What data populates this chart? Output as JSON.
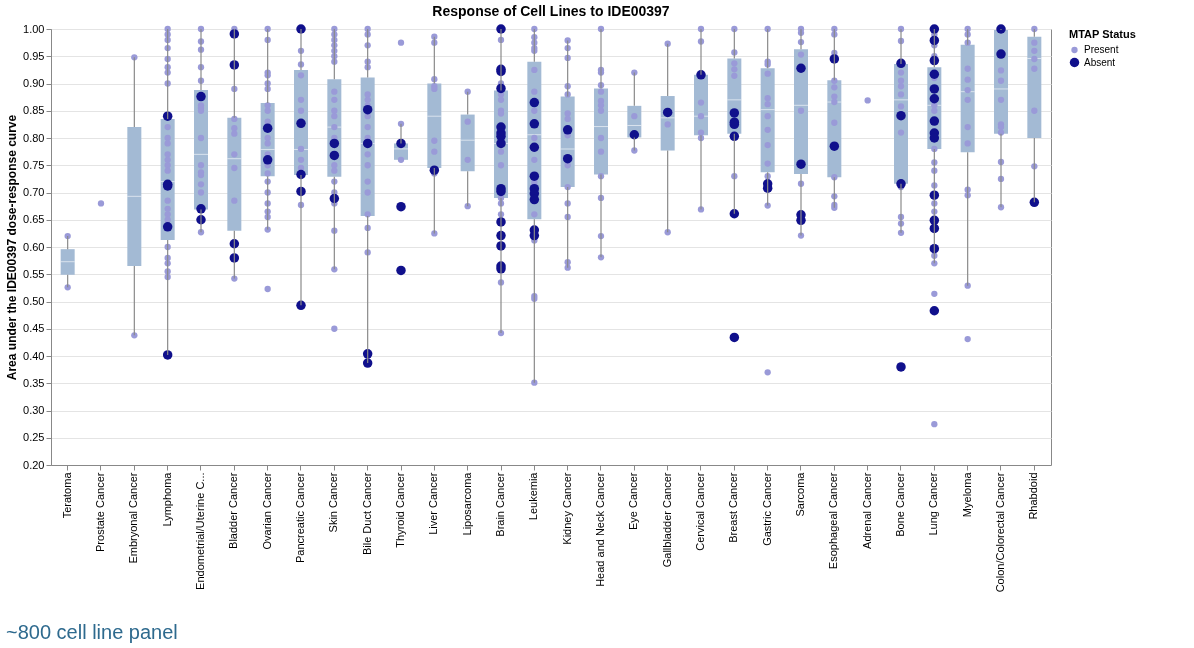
{
  "chart_data": {
    "type": "box",
    "title": "Response of Cell Lines to IDE00397",
    "ylabel": "Area under the IDE00397 dose-response curve",
    "legend_title": "MTAP Status",
    "legend": "right",
    "grid": "y",
    "marker": "circle",
    "annotations": [
      "~800 cell line panel"
    ],
    "ylim": [
      0.2,
      1.0
    ],
    "yticks": [
      {
        "value": 0.2,
        "label": "0.20"
      },
      {
        "value": 0.25,
        "label": "0.25"
      },
      {
        "value": 0.3,
        "label": "0.30"
      },
      {
        "value": 0.35,
        "label": "0.35"
      },
      {
        "value": 0.4,
        "label": "0.40"
      },
      {
        "value": 0.45,
        "label": "0.45"
      },
      {
        "value": 0.5,
        "label": "0.50"
      },
      {
        "value": 0.55,
        "label": "0.55"
      },
      {
        "value": 0.6,
        "label": "0.60"
      },
      {
        "value": 0.65,
        "label": "0.65"
      },
      {
        "value": 0.7,
        "label": "0.70"
      },
      {
        "value": 0.75,
        "label": "0.75"
      },
      {
        "value": 0.8,
        "label": "0.80"
      },
      {
        "value": 0.85,
        "label": "0.85"
      },
      {
        "value": 0.9,
        "label": "0.90"
      },
      {
        "value": 0.95,
        "label": "0.95"
      },
      {
        "value": 1.0,
        "label": "1.00"
      }
    ],
    "categories": [
      "Teratoma",
      "Prostate Cancer",
      "Embryonal Cancer",
      "Lymphoma",
      "Endometrial/Uterine C...",
      "Bladder Cancer",
      "Ovarian Cancer",
      "Pancreatic Cancer",
      "Skin Cancer",
      "Bile Duct Cancer",
      "Thyroid Cancer",
      "Liver Cancer",
      "Liposarcoma",
      "Brain Cancer",
      "Leukemia",
      "Kidney Cancer",
      "Head and Neck Cancer",
      "Eye Cancer",
      "Gallbladder Cancer",
      "Cervical Cancer",
      "Breast Cancer",
      "Gastric Cancer",
      "Sarcoma",
      "Esophageal Cancer",
      "Adrenal Cancer",
      "Bone Cancer",
      "Lung Cancer",
      "Myeloma",
      "Colon/Colorectal Cancer",
      "Rhabdoid"
    ],
    "series": [
      {
        "type": "box",
        "color": "#a3bad4",
        "boxes": [
          {
            "low": 0.526,
            "q1": 0.549,
            "median": 0.573,
            "q3": 0.596,
            "high": 0.62
          },
          null,
          {
            "low": 0.438,
            "q1": 0.565,
            "median": 0.693,
            "q3": 0.82,
            "high": 0.948
          },
          {
            "low": 0.402,
            "q1": 0.613,
            "median": 0.72,
            "q3": 0.835,
            "high": 1.0
          },
          {
            "low": 0.627,
            "q1": 0.669,
            "median": 0.77,
            "q3": 0.888,
            "high": 1.0
          },
          {
            "low": 0.542,
            "q1": 0.63,
            "median": 0.762,
            "q3": 0.837,
            "high": 1.0
          },
          {
            "low": 0.632,
            "q1": 0.73,
            "median": 0.779,
            "q3": 0.864,
            "high": 1.0
          },
          {
            "low": 0.493,
            "q1": 0.732,
            "median": 0.779,
            "q3": 0.925,
            "high": 1.0
          },
          {
            "low": 0.559,
            "q1": 0.729,
            "median": 0.82,
            "q3": 0.908,
            "high": 1.0
          },
          {
            "low": 0.387,
            "q1": 0.657,
            "median": 0.79,
            "q3": 0.911,
            "high": 1.0
          },
          {
            "low": 0.76,
            "q1": 0.76,
            "median": 0.78,
            "q3": 0.79,
            "high": 0.826
          },
          {
            "low": 0.625,
            "q1": 0.745,
            "median": 0.84,
            "q3": 0.9,
            "high": 0.986
          },
          {
            "low": 0.675,
            "q1": 0.739,
            "median": 0.796,
            "q3": 0.843,
            "high": 0.885
          },
          {
            "low": 0.442,
            "q1": 0.69,
            "median": 0.79,
            "q3": 0.887,
            "high": 1.0
          },
          {
            "low": 0.351,
            "q1": 0.651,
            "median": 0.806,
            "q3": 0.94,
            "high": 1.0
          },
          {
            "low": 0.562,
            "q1": 0.71,
            "median": 0.78,
            "q3": 0.876,
            "high": 0.979
          },
          {
            "low": 0.581,
            "q1": 0.733,
            "median": 0.821,
            "q3": 0.891,
            "high": 1.0
          },
          {
            "low": 0.777,
            "q1": 0.801,
            "median": 0.823,
            "q3": 0.859,
            "high": 0.92
          },
          {
            "low": 0.627,
            "q1": 0.777,
            "median": 0.837,
            "q3": 0.877,
            "high": 0.973
          },
          {
            "low": 0.669,
            "q1": 0.805,
            "median": 0.84,
            "q3": 0.916,
            "high": 1.0
          },
          {
            "low": 0.661,
            "q1": 0.808,
            "median": 0.87,
            "q3": 0.946,
            "high": 1.0
          },
          {
            "low": 0.676,
            "q1": 0.737,
            "median": 0.852,
            "q3": 0.928,
            "high": 1.0
          },
          {
            "low": 0.621,
            "q1": 0.734,
            "median": 0.86,
            "q3": 0.963,
            "high": 1.0
          },
          {
            "low": 0.672,
            "q1": 0.728,
            "median": 0.866,
            "q3": 0.906,
            "high": 1.0
          },
          null,
          {
            "low": 0.626,
            "q1": 0.716,
            "median": 0.87,
            "q3": 0.936,
            "high": 1.0
          },
          {
            "low": 0.57,
            "q1": 0.78,
            "median": 0.86,
            "q3": 0.93,
            "high": 1.0
          },
          {
            "low": 0.529,
            "q1": 0.774,
            "median": 0.885,
            "q3": 0.971,
            "high": 1.0
          },
          {
            "low": 0.673,
            "q1": 0.808,
            "median": 0.89,
            "q3": 0.998,
            "high": 1.0
          },
          {
            "low": 0.682,
            "q1": 0.8,
            "median": 0.946,
            "q3": 0.986,
            "high": 1.0
          }
        ]
      },
      {
        "name": "Present",
        "type": "scatter",
        "color": "#9a9ad8",
        "x": [
          "Teratoma",
          "Teratoma",
          "Prostate Cancer",
          "Embryonal Cancer",
          "Embryonal Cancer",
          "Lymphoma",
          "Lymphoma",
          "Lymphoma",
          "Lymphoma",
          "Lymphoma",
          "Lymphoma",
          "Lymphoma",
          "Lymphoma",
          "Lymphoma",
          "Lymphoma",
          "Lymphoma",
          "Lymphoma",
          "Lymphoma",
          "Lymphoma",
          "Lymphoma",
          "Lymphoma",
          "Lymphoma",
          "Lymphoma",
          "Lymphoma",
          "Lymphoma",
          "Lymphoma",
          "Lymphoma",
          "Lymphoma",
          "Lymphoma",
          "Endometrial/Uterine C...",
          "Endometrial/Uterine C...",
          "Endometrial/Uterine C...",
          "Endometrial/Uterine C...",
          "Endometrial/Uterine C...",
          "Endometrial/Uterine C...",
          "Endometrial/Uterine C...",
          "Endometrial/Uterine C...",
          "Endometrial/Uterine C...",
          "Endometrial/Uterine C...",
          "Endometrial/Uterine C...",
          "Endometrial/Uterine C...",
          "Endometrial/Uterine C...",
          "Endometrial/Uterine C...",
          "Endometrial/Uterine C...",
          "Bladder Cancer",
          "Bladder Cancer",
          "Bladder Cancer",
          "Bladder Cancer",
          "Bladder Cancer",
          "Bladder Cancer",
          "Bladder Cancer",
          "Bladder Cancer",
          "Bladder Cancer",
          "Ovarian Cancer",
          "Ovarian Cancer",
          "Ovarian Cancer",
          "Ovarian Cancer",
          "Ovarian Cancer",
          "Ovarian Cancer",
          "Ovarian Cancer",
          "Ovarian Cancer",
          "Ovarian Cancer",
          "Ovarian Cancer",
          "Ovarian Cancer",
          "Ovarian Cancer",
          "Ovarian Cancer",
          "Ovarian Cancer",
          "Ovarian Cancer",
          "Ovarian Cancer",
          "Ovarian Cancer",
          "Ovarian Cancer",
          "Ovarian Cancer",
          "Ovarian Cancer",
          "Ovarian Cancer",
          "Pancreatic Cancer",
          "Pancreatic Cancer",
          "Pancreatic Cancer",
          "Pancreatic Cancer",
          "Pancreatic Cancer",
          "Pancreatic Cancer",
          "Pancreatic Cancer",
          "Pancreatic Cancer",
          "Pancreatic Cancer",
          "Skin Cancer",
          "Skin Cancer",
          "Skin Cancer",
          "Skin Cancer",
          "Skin Cancer",
          "Skin Cancer",
          "Skin Cancer",
          "Skin Cancer",
          "Skin Cancer",
          "Skin Cancer",
          "Skin Cancer",
          "Skin Cancer",
          "Skin Cancer",
          "Skin Cancer",
          "Skin Cancer",
          "Skin Cancer",
          "Skin Cancer",
          "Skin Cancer",
          "Skin Cancer",
          "Skin Cancer",
          "Skin Cancer",
          "Bile Duct Cancer",
          "Bile Duct Cancer",
          "Bile Duct Cancer",
          "Bile Duct Cancer",
          "Bile Duct Cancer",
          "Bile Duct Cancer",
          "Bile Duct Cancer",
          "Bile Duct Cancer",
          "Bile Duct Cancer",
          "Bile Duct Cancer",
          "Bile Duct Cancer",
          "Bile Duct Cancer",
          "Bile Duct Cancer",
          "Bile Duct Cancer",
          "Bile Duct Cancer",
          "Bile Duct Cancer",
          "Bile Duct Cancer",
          "Bile Duct Cancer",
          "Thyroid Cancer",
          "Thyroid Cancer",
          "Thyroid Cancer",
          "Liver Cancer",
          "Liver Cancer",
          "Liver Cancer",
          "Liver Cancer",
          "Liver Cancer",
          "Liver Cancer",
          "Liver Cancer",
          "Liver Cancer",
          "Liver Cancer",
          "Liposarcoma",
          "Liposarcoma",
          "Liposarcoma",
          "Liposarcoma",
          "Brain Cancer",
          "Brain Cancer",
          "Brain Cancer",
          "Brain Cancer",
          "Brain Cancer",
          "Brain Cancer",
          "Brain Cancer",
          "Brain Cancer",
          "Brain Cancer",
          "Brain Cancer",
          "Brain Cancer",
          "Brain Cancer",
          "Brain Cancer",
          "Leukemia",
          "Leukemia",
          "Leukemia",
          "Leukemia",
          "Leukemia",
          "Leukemia",
          "Leukemia",
          "Leukemia",
          "Leukemia",
          "Leukemia",
          "Leukemia",
          "Leukemia",
          "Leukemia",
          "Leukemia",
          "Leukemia",
          "Leukemia",
          "Leukemia",
          "Leukemia",
          "Kidney Cancer",
          "Kidney Cancer",
          "Kidney Cancer",
          "Kidney Cancer",
          "Kidney Cancer",
          "Kidney Cancer",
          "Kidney Cancer",
          "Kidney Cancer",
          "Kidney Cancer",
          "Kidney Cancer",
          "Kidney Cancer",
          "Kidney Cancer",
          "Kidney Cancer",
          "Kidney Cancer",
          "Head and Neck Cancer",
          "Head and Neck Cancer",
          "Head and Neck Cancer",
          "Head and Neck Cancer",
          "Head and Neck Cancer",
          "Head and Neck Cancer",
          "Head and Neck Cancer",
          "Head and Neck Cancer",
          "Head and Neck Cancer",
          "Head and Neck Cancer",
          "Head and Neck Cancer",
          "Head and Neck Cancer",
          "Head and Neck Cancer",
          "Head and Neck Cancer",
          "Eye Cancer",
          "Eye Cancer",
          "Eye Cancer",
          "Gallbladder Cancer",
          "Gallbladder Cancer",
          "Gallbladder Cancer",
          "Cervical Cancer",
          "Cervical Cancer",
          "Cervical Cancer",
          "Cervical Cancer",
          "Cervical Cancer",
          "Cervical Cancer",
          "Cervical Cancer",
          "Breast Cancer",
          "Breast Cancer",
          "Breast Cancer",
          "Breast Cancer",
          "Breast Cancer",
          "Breast Cancer",
          "Gastric Cancer",
          "Gastric Cancer",
          "Gastric Cancer",
          "Gastric Cancer",
          "Gastric Cancer",
          "Gastric Cancer",
          "Gastric Cancer",
          "Gastric Cancer",
          "Gastric Cancer",
          "Gastric Cancer",
          "Gastric Cancer",
          "Gastric Cancer",
          "Gastric Cancer",
          "Sarcoma",
          "Sarcoma",
          "Sarcoma",
          "Sarcoma",
          "Sarcoma",
          "Sarcoma",
          "Sarcoma",
          "Esophageal Cancer",
          "Esophageal Cancer",
          "Esophageal Cancer",
          "Esophageal Cancer",
          "Esophageal Cancer",
          "Esophageal Cancer",
          "Esophageal Cancer",
          "Esophageal Cancer",
          "Esophageal Cancer",
          "Esophageal Cancer",
          "Esophageal Cancer",
          "Esophageal Cancer",
          "Adrenal Cancer",
          "Bone Cancer",
          "Bone Cancer",
          "Bone Cancer",
          "Bone Cancer",
          "Bone Cancer",
          "Bone Cancer",
          "Bone Cancer",
          "Bone Cancer",
          "Bone Cancer",
          "Bone Cancer",
          "Bone Cancer",
          "Bone Cancer",
          "Lung Cancer",
          "Lung Cancer",
          "Lung Cancer",
          "Lung Cancer",
          "Lung Cancer",
          "Lung Cancer",
          "Lung Cancer",
          "Lung Cancer",
          "Lung Cancer",
          "Lung Cancer",
          "Lung Cancer",
          "Lung Cancer",
          "Lung Cancer",
          "Lung Cancer",
          "Lung Cancer",
          "Lung Cancer",
          "Lung Cancer",
          "Myeloma",
          "Myeloma",
          "Myeloma",
          "Myeloma",
          "Myeloma",
          "Myeloma",
          "Myeloma",
          "Myeloma",
          "Myeloma",
          "Myeloma",
          "Myeloma",
          "Myeloma",
          "Myeloma",
          "Colon/Colorectal Cancer",
          "Colon/Colorectal Cancer",
          "Colon/Colorectal Cancer",
          "Colon/Colorectal Cancer",
          "Colon/Colorectal Cancer",
          "Colon/Colorectal Cancer",
          "Colon/Colorectal Cancer",
          "Colon/Colorectal Cancer",
          "Colon/Colorectal Cancer",
          "Rhabdoid",
          "Rhabdoid",
          "Rhabdoid",
          "Rhabdoid",
          "Rhabdoid",
          "Rhabdoid",
          "Rhabdoid"
        ],
        "values": [
          0.62,
          0.526,
          0.68,
          0.948,
          0.438,
          1.0,
          0.99,
          0.98,
          0.965,
          0.945,
          0.93,
          0.92,
          0.9,
          0.82,
          0.8,
          0.79,
          0.77,
          0.76,
          0.75,
          0.74,
          0.685,
          0.67,
          0.66,
          0.65,
          0.6,
          0.58,
          0.57,
          0.555,
          0.545,
          1.0,
          0.977,
          0.962,
          0.93,
          0.905,
          0.86,
          0.855,
          0.85,
          0.8,
          0.75,
          0.737,
          0.732,
          0.715,
          0.7,
          0.627,
          1.0,
          0.89,
          0.835,
          0.818,
          0.808,
          0.77,
          0.745,
          0.685,
          0.542,
          1.0,
          0.98,
          0.92,
          0.915,
          0.9,
          0.89,
          0.86,
          0.85,
          0.83,
          0.8,
          0.79,
          0.77,
          0.75,
          0.735,
          0.72,
          0.7,
          0.68,
          0.665,
          0.655,
          0.632,
          0.523,
          0.96,
          0.935,
          0.915,
          0.87,
          0.85,
          0.78,
          0.76,
          0.745,
          0.677,
          1.0,
          0.99,
          0.98,
          0.97,
          0.96,
          0.95,
          0.94,
          0.885,
          0.87,
          0.85,
          0.84,
          0.82,
          0.8,
          0.75,
          0.74,
          0.72,
          0.7,
          0.68,
          0.63,
          0.559,
          0.45,
          1.0,
          0.99,
          0.97,
          0.94,
          0.93,
          0.88,
          0.87,
          0.86,
          0.84,
          0.82,
          0.8,
          0.77,
          0.75,
          0.72,
          0.7,
          0.66,
          0.635,
          0.59,
          0.975,
          0.826,
          0.76,
          0.986,
          0.975,
          0.908,
          0.895,
          0.89,
          0.795,
          0.775,
          0.735,
          0.625,
          0.885,
          0.83,
          0.76,
          0.675,
          0.98,
          0.9,
          0.88,
          0.87,
          0.85,
          0.845,
          0.775,
          0.75,
          0.69,
          0.68,
          0.66,
          0.535,
          0.442,
          1.0,
          0.985,
          0.975,
          0.965,
          0.96,
          0.925,
          0.885,
          0.85,
          0.8,
          0.78,
          0.76,
          0.72,
          0.715,
          0.66,
          0.612,
          0.51,
          0.505,
          0.351,
          0.979,
          0.965,
          0.947,
          0.895,
          0.88,
          0.845,
          0.835,
          0.805,
          0.75,
          0.71,
          0.68,
          0.655,
          0.572,
          0.562,
          1.0,
          0.925,
          0.92,
          0.897,
          0.885,
          0.868,
          0.86,
          0.85,
          0.8,
          0.775,
          0.73,
          0.69,
          0.62,
          0.581,
          0.92,
          0.84,
          0.777,
          0.973,
          0.825,
          0.627,
          1.0,
          0.977,
          0.865,
          0.84,
          0.81,
          0.8,
          0.669,
          1.0,
          0.957,
          0.937,
          0.926,
          0.914,
          0.73,
          1.0,
          0.94,
          0.935,
          0.918,
          0.873,
          0.862,
          0.84,
          0.815,
          0.787,
          0.753,
          0.73,
          0.676,
          0.37,
          1.0,
          0.993,
          0.976,
          0.953,
          0.85,
          0.716,
          0.621,
          1.0,
          0.99,
          0.956,
          0.905,
          0.893,
          0.876,
          0.866,
          0.828,
          0.728,
          0.693,
          0.677,
          0.672,
          0.869,
          1.0,
          0.978,
          0.92,
          0.905,
          0.895,
          0.88,
          0.858,
          0.81,
          0.71,
          0.655,
          0.643,
          0.626,
          0.99,
          0.97,
          0.95,
          0.91,
          0.86,
          0.85,
          0.78,
          0.755,
          0.74,
          0.713,
          0.68,
          0.665,
          0.6,
          0.584,
          0.57,
          0.514,
          0.275,
          1.0,
          0.99,
          0.975,
          0.927,
          0.907,
          0.888,
          0.87,
          0.82,
          0.79,
          0.705,
          0.695,
          0.529,
          0.431,
          0.924,
          0.905,
          0.87,
          0.825,
          0.82,
          0.81,
          0.756,
          0.725,
          0.673,
          1.0,
          0.975,
          0.96,
          0.945,
          0.927,
          0.85,
          0.748
        ]
      },
      {
        "name": "Absent",
        "type": "scatter",
        "color": "#10108c",
        "x": [
          "Lymphoma",
          "Lymphoma",
          "Lymphoma",
          "Lymphoma",
          "Lymphoma",
          "Endometrial/Uterine C...",
          "Endometrial/Uterine C...",
          "Endometrial/Uterine C...",
          "Bladder Cancer",
          "Bladder Cancer",
          "Bladder Cancer",
          "Bladder Cancer",
          "Ovarian Cancer",
          "Ovarian Cancer",
          "Pancreatic Cancer",
          "Pancreatic Cancer",
          "Pancreatic Cancer",
          "Pancreatic Cancer",
          "Pancreatic Cancer",
          "Skin Cancer",
          "Skin Cancer",
          "Skin Cancer",
          "Bile Duct Cancer",
          "Bile Duct Cancer",
          "Bile Duct Cancer",
          "Bile Duct Cancer",
          "Thyroid Cancer",
          "Thyroid Cancer",
          "Thyroid Cancer",
          "Liver Cancer",
          "Brain Cancer",
          "Brain Cancer",
          "Brain Cancer",
          "Brain Cancer",
          "Brain Cancer",
          "Brain Cancer",
          "Brain Cancer",
          "Brain Cancer",
          "Brain Cancer",
          "Brain Cancer",
          "Brain Cancer",
          "Brain Cancer",
          "Brain Cancer",
          "Brain Cancer",
          "Brain Cancer",
          "Leukemia",
          "Leukemia",
          "Leukemia",
          "Leukemia",
          "Leukemia",
          "Leukemia",
          "Leukemia",
          "Leukemia",
          "Leukemia",
          "Kidney Cancer",
          "Kidney Cancer",
          "Eye Cancer",
          "Gallbladder Cancer",
          "Cervical Cancer",
          "Breast Cancer",
          "Breast Cancer",
          "Breast Cancer",
          "Breast Cancer",
          "Breast Cancer",
          "Breast Cancer",
          "Gastric Cancer",
          "Gastric Cancer",
          "Sarcoma",
          "Sarcoma",
          "Sarcoma",
          "Sarcoma",
          "Esophageal Cancer",
          "Esophageal Cancer",
          "Bone Cancer",
          "Bone Cancer",
          "Bone Cancer",
          "Bone Cancer",
          "Lung Cancer",
          "Lung Cancer",
          "Lung Cancer",
          "Lung Cancer",
          "Lung Cancer",
          "Lung Cancer",
          "Lung Cancer",
          "Lung Cancer",
          "Lung Cancer",
          "Lung Cancer",
          "Lung Cancer",
          "Lung Cancer",
          "Lung Cancer",
          "Lung Cancer",
          "Colon/Colorectal Cancer",
          "Colon/Colorectal Cancer",
          "Rhabdoid"
        ],
        "values": [
          0.84,
          0.715,
          0.712,
          0.637,
          0.402,
          0.876,
          0.67,
          0.65,
          0.991,
          0.934,
          0.606,
          0.58,
          0.818,
          0.76,
          1.0,
          0.827,
          0.733,
          0.702,
          0.493,
          0.79,
          0.768,
          0.689,
          0.852,
          0.79,
          0.404,
          0.387,
          0.79,
          0.674,
          0.557,
          0.741,
          1.0,
          0.926,
          0.922,
          0.891,
          0.82,
          0.809,
          0.803,
          0.79,
          0.707,
          0.702,
          0.646,
          0.621,
          0.602,
          0.565,
          0.56,
          0.865,
          0.826,
          0.783,
          0.73,
          0.707,
          0.698,
          0.687,
          0.631,
          0.621,
          0.815,
          0.762,
          0.806,
          0.847,
          0.916,
          0.846,
          0.829,
          0.825,
          0.803,
          0.661,
          0.434,
          0.716,
          0.708,
          0.928,
          0.752,
          0.659,
          0.649,
          0.945,
          0.785,
          0.937,
          0.841,
          0.716,
          0.38,
          1.0,
          0.979,
          0.942,
          0.917,
          0.89,
          0.872,
          0.831,
          0.809,
          0.8,
          0.695,
          0.649,
          0.634,
          0.597,
          0.483,
          1.0,
          0.954,
          0.682
        ]
      }
    ]
  }
}
